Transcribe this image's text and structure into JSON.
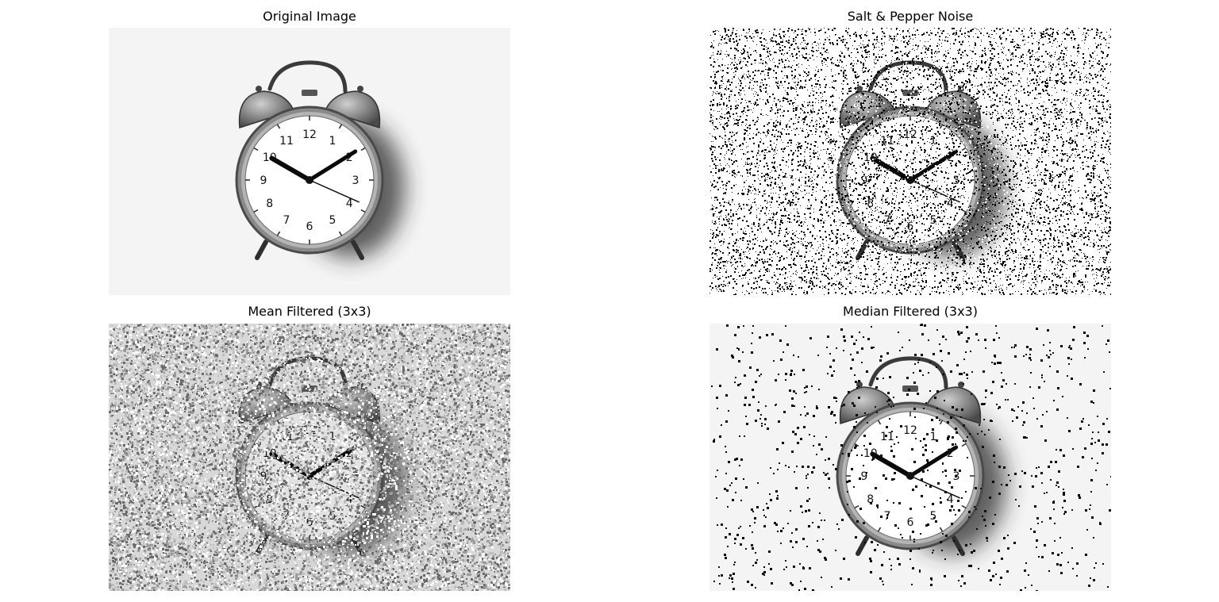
{
  "panels": [
    {
      "id": "original",
      "title": "Original Image",
      "noise": "none"
    },
    {
      "id": "salt-pepper",
      "title": "Salt & Pepper Noise",
      "noise": "heavy"
    },
    {
      "id": "mean",
      "title": "Mean Filtered (3x3)",
      "noise": "mean"
    },
    {
      "id": "median",
      "title": "Median Filtered (3x3)",
      "noise": "median"
    }
  ],
  "clock": {
    "numbers": [
      "12",
      "1",
      "2",
      "3",
      "4",
      "5",
      "6",
      "7",
      "8",
      "9",
      "10",
      "11"
    ]
  }
}
